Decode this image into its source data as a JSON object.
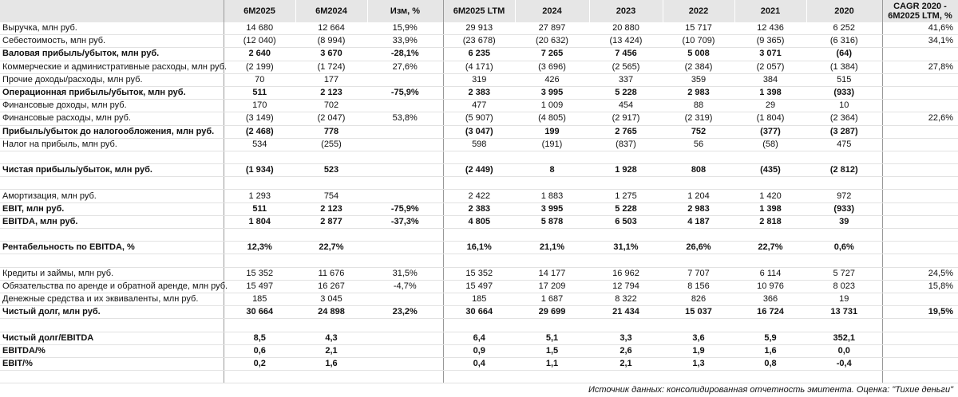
{
  "table": {
    "header": [
      "6M2025",
      "6M2024",
      "Изм, %",
      "6M2025 LTM",
      "2024",
      "2023",
      "2022",
      "2021",
      "2020",
      "CAGR 2020 - 6M2025 LTM, %"
    ],
    "rows": [
      {
        "label": "Выручка, млн руб.",
        "bold": false,
        "cells": [
          "14 680",
          "12 664",
          "15,9%",
          "29 913",
          "27 897",
          "20 880",
          "15 717",
          "12 436",
          "6 252",
          "41,6%"
        ]
      },
      {
        "label": "Себестоимость, млн руб.",
        "bold": false,
        "cells": [
          "(12 040)",
          "(8 994)",
          "33,9%",
          "(23 678)",
          "(20 632)",
          "(13 424)",
          "(10 709)",
          "(9 365)",
          "(6 316)",
          "34,1%"
        ]
      },
      {
        "label": "Валовая прибыль/убыток, млн руб.",
        "bold": true,
        "cells": [
          "2 640",
          "3 670",
          "-28,1%",
          "6 235",
          "7 265",
          "7 456",
          "5 008",
          "3 071",
          "(64)",
          null
        ]
      },
      {
        "label": "Коммерческие и административные расходы, млн руб.",
        "bold": false,
        "cells": [
          "(2 199)",
          "(1 724)",
          "27,6%",
          "(4 171)",
          "(3 696)",
          "(2 565)",
          "(2 384)",
          "(2 057)",
          "(1 384)",
          "27,8%"
        ]
      },
      {
        "label": "Прочие доходы/расходы, млн руб.",
        "bold": false,
        "cells": [
          "70",
          "177",
          null,
          "319",
          "426",
          "337",
          "359",
          "384",
          "515",
          null
        ]
      },
      {
        "label": "Операционная прибыль/убыток, млн руб.",
        "bold": true,
        "cells": [
          "511",
          "2 123",
          "-75,9%",
          "2 383",
          "3 995",
          "5 228",
          "2 983",
          "1 398",
          "(933)",
          null
        ]
      },
      {
        "label": "Финансовые доходы, млн руб.",
        "bold": false,
        "cells": [
          "170",
          "702",
          null,
          "477",
          "1 009",
          "454",
          "88",
          "29",
          "10",
          null
        ]
      },
      {
        "label": "Финансовые расходы, млн руб.",
        "bold": false,
        "cells": [
          "(3 149)",
          "(2 047)",
          "53,8%",
          "(5 907)",
          "(4 805)",
          "(2 917)",
          "(2 319)",
          "(1 804)",
          "(2 364)",
          "22,6%"
        ]
      },
      {
        "label": "Прибыль/убыток до налогообложения, млн руб.",
        "bold": true,
        "cells": [
          "(2 468)",
          "778",
          null,
          "(3 047)",
          "199",
          "2 765",
          "752",
          "(377)",
          "(3 287)",
          null
        ]
      },
      {
        "label": "Налог на прибыль, млн руб.",
        "bold": false,
        "cells": [
          "534",
          "(255)",
          null,
          "598",
          "(191)",
          "(837)",
          "56",
          "(58)",
          "475",
          null
        ]
      },
      null,
      {
        "label": "Чистая прибыль/убыток, млн руб.",
        "bold": true,
        "cells": [
          "(1 934)",
          "523",
          null,
          "(2 449)",
          "8",
          "1 928",
          "808",
          "(435)",
          "(2 812)",
          null
        ]
      },
      null,
      {
        "label": "Амортизация, млн руб.",
        "bold": false,
        "cells": [
          "1 293",
          "754",
          null,
          "2 422",
          "1 883",
          "1 275",
          "1 204",
          "1 420",
          "972",
          null
        ]
      },
      {
        "label": "EBIT, млн руб.",
        "bold": true,
        "cells": [
          "511",
          "2 123",
          "-75,9%",
          "2 383",
          "3 995",
          "5 228",
          "2 983",
          "1 398",
          "(933)",
          null
        ]
      },
      {
        "label": "EBITDA, млн руб.",
        "bold": true,
        "cells": [
          "1 804",
          "2 877",
          "-37,3%",
          "4 805",
          "5 878",
          "6 503",
          "4 187",
          "2 818",
          "39",
          null
        ]
      },
      null,
      {
        "label": "Рентабельность по EBITDA, %",
        "bold": true,
        "cells": [
          "12,3%",
          "22,7%",
          null,
          "16,1%",
          "21,1%",
          "31,1%",
          "26,6%",
          "22,7%",
          "0,6%",
          null
        ]
      },
      null,
      {
        "label": "Кредиты и займы, млн руб.",
        "bold": false,
        "cells": [
          "15 352",
          "11 676",
          "31,5%",
          "15 352",
          "14 177",
          "16 962",
          "7 707",
          "6 114",
          "5 727",
          "24,5%"
        ]
      },
      {
        "label": "Обязательства по аренде и обратной аренде, млн руб.",
        "bold": false,
        "cells": [
          "15 497",
          "16 267",
          "-4,7%",
          "15 497",
          "17 209",
          "12 794",
          "8 156",
          "10 976",
          "8 023",
          "15,8%"
        ]
      },
      {
        "label": "Денежные средства и их эквиваленты, млн руб.",
        "bold": false,
        "cells": [
          "185",
          "3 045",
          null,
          "185",
          "1 687",
          "8 322",
          "826",
          "366",
          "19",
          null
        ]
      },
      {
        "label": "Чистый долг, млн руб.",
        "bold": true,
        "cells": [
          "30 664",
          "24 898",
          "23,2%",
          "30 664",
          "29 699",
          "21 434",
          "15 037",
          "16 724",
          "13 731",
          "19,5%"
        ]
      },
      null,
      {
        "label": "Чистый долг/EBITDA",
        "bold": true,
        "cells": [
          "8,5",
          "4,3",
          null,
          "6,4",
          "5,1",
          "3,3",
          "3,6",
          "5,9",
          "352,1",
          null
        ]
      },
      {
        "label": "EBITDA/%",
        "bold": true,
        "cells": [
          "0,6",
          "2,1",
          null,
          "0,9",
          "1,5",
          "2,6",
          "1,9",
          "1,6",
          "0,0",
          null
        ]
      },
      {
        "label": "EBIT/%",
        "bold": true,
        "cells": [
          "0,2",
          "1,6",
          null,
          "0,4",
          "1,1",
          "2,1",
          "1,3",
          "0,8",
          "-0,4",
          null
        ]
      },
      null
    ],
    "footer": "Источник данных: консолидированная отчетность эмитента. Оценка: \"Тихие деньги\""
  }
}
